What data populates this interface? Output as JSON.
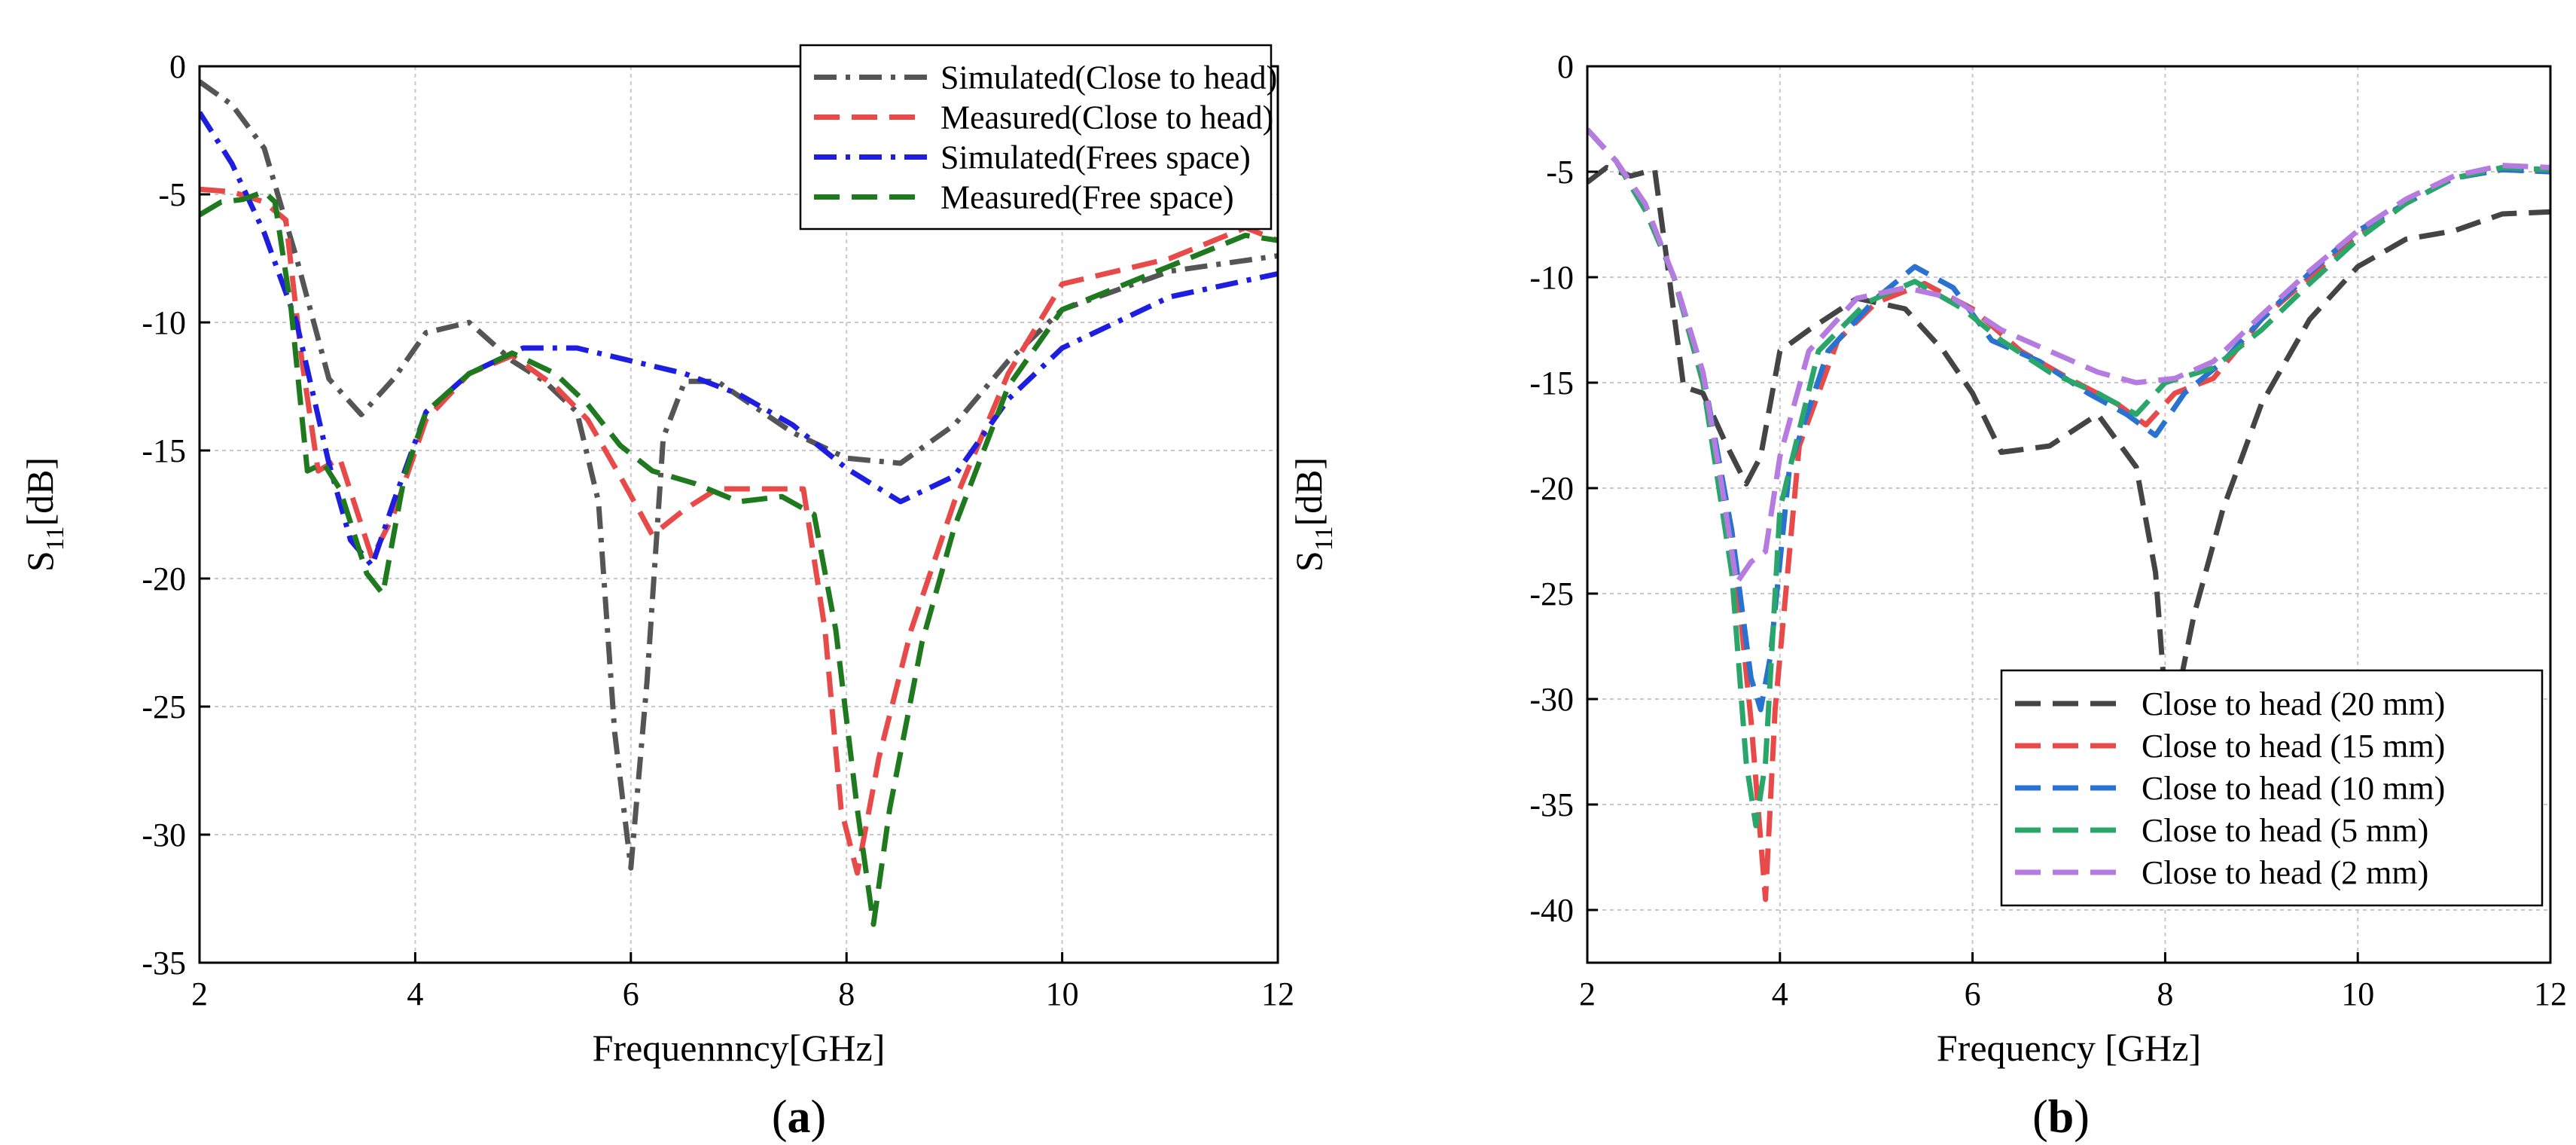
{
  "chart_data": [
    {
      "type": "line",
      "panel_label": "a",
      "xlabel": "Frequennncy[GHz]",
      "ylabel": {
        "main": "S",
        "sub": "11",
        "unit": "[dB]"
      },
      "xlim": [
        2,
        12
      ],
      "ylim": [
        -35,
        0
      ],
      "xticks": [
        2,
        4,
        6,
        8,
        10,
        12
      ],
      "yticks": [
        0,
        -5,
        -10,
        -15,
        -20,
        -25,
        -30,
        -35
      ],
      "grid": true,
      "legend_position": "top-center",
      "series": [
        {
          "name": "Simulated(Close to head)",
          "color": "#555555",
          "dash": "dashdot",
          "x": [
            2,
            2.3,
            2.6,
            2.9,
            3.2,
            3.5,
            3.8,
            4.1,
            4.5,
            4.9,
            5.2,
            5.5,
            5.7,
            5.85,
            6.0,
            6.15,
            6.3,
            6.5,
            6.8,
            7.5,
            8.0,
            8.5,
            9.0,
            9.5,
            10.0,
            11.0,
            12.0
          ],
          "y": [
            -0.6,
            -1.5,
            -3.2,
            -7.5,
            -12.2,
            -13.6,
            -12.2,
            -10.4,
            -10.0,
            -11.5,
            -12.3,
            -13.5,
            -17.0,
            -26.0,
            -31.3,
            -24.0,
            -14.5,
            -12.3,
            -12.3,
            -14.3,
            -15.3,
            -15.5,
            -14.0,
            -11.5,
            -9.5,
            -8.0,
            -7.4
          ]
        },
        {
          "name": "Measured(Close to head)",
          "color": "#e84a4a",
          "dash": "dashed",
          "x": [
            2,
            2.3,
            2.6,
            2.8,
            2.95,
            3.1,
            3.3,
            3.6,
            3.8,
            4.1,
            4.5,
            4.9,
            5.3,
            5.6,
            5.9,
            6.2,
            6.5,
            6.8,
            7.2,
            7.6,
            7.8,
            7.95,
            8.1,
            8.3,
            8.6,
            9.0,
            9.5,
            10.0,
            11.0,
            11.7,
            12.0
          ],
          "y": [
            -4.8,
            -4.9,
            -5.3,
            -6.0,
            -11.5,
            -15.8,
            -15.3,
            -19.2,
            -17.5,
            -13.8,
            -12.0,
            -11.3,
            -12.5,
            -13.8,
            -16.0,
            -18.3,
            -17.3,
            -16.5,
            -16.5,
            -16.5,
            -22.0,
            -29.0,
            -31.5,
            -27.0,
            -22.0,
            -17.0,
            -12.0,
            -8.5,
            -7.5,
            -6.3,
            -6.8
          ]
        },
        {
          "name": "Simulated(Frees space)",
          "color": "#1e1ee0",
          "dash": "dashdot",
          "x": [
            2,
            2.3,
            2.6,
            2.9,
            3.2,
            3.4,
            3.6,
            3.8,
            4.1,
            4.5,
            5.0,
            5.5,
            6.0,
            6.5,
            7.0,
            7.5,
            8.0,
            8.5,
            9.0,
            9.5,
            10.0,
            11.0,
            12.0
          ],
          "y": [
            -1.8,
            -3.8,
            -6.5,
            -10.0,
            -15.5,
            -18.5,
            -19.5,
            -17.0,
            -13.5,
            -12.0,
            -11.0,
            -11.0,
            -11.5,
            -12.0,
            -12.8,
            -14.0,
            -15.7,
            -17.0,
            -16.0,
            -13.0,
            -11.0,
            -9.0,
            -8.1
          ]
        },
        {
          "name": "Measured(Free space)",
          "color": "#1f7a1f",
          "dash": "dashed",
          "x": [
            2,
            2.2,
            2.4,
            2.6,
            2.7,
            2.85,
            3.0,
            3.15,
            3.3,
            3.55,
            3.7,
            3.9,
            4.1,
            4.5,
            4.9,
            5.3,
            5.6,
            5.9,
            6.2,
            6.6,
            7.0,
            7.4,
            7.7,
            7.9,
            8.1,
            8.25,
            8.4,
            8.7,
            9.0,
            9.5,
            10.0,
            11.0,
            11.7,
            12.0
          ],
          "y": [
            -5.8,
            -5.3,
            -5.2,
            -4.9,
            -5.3,
            -9.5,
            -15.8,
            -15.5,
            -16.5,
            -19.8,
            -20.6,
            -16.0,
            -13.5,
            -12.0,
            -11.2,
            -12.0,
            -13.2,
            -14.8,
            -15.8,
            -16.3,
            -17.0,
            -16.8,
            -17.5,
            -22.0,
            -29.0,
            -33.5,
            -29.0,
            -22.5,
            -18.0,
            -12.5,
            -9.5,
            -7.8,
            -6.6,
            -6.8
          ]
        }
      ]
    },
    {
      "type": "line",
      "panel_label": "b",
      "xlabel": "Frequency [GHz]",
      "ylabel": {
        "main": "S",
        "sub": "11",
        "unit": "[dB]"
      },
      "xlim": [
        2,
        12
      ],
      "ylim": [
        -42.5,
        0
      ],
      "xticks": [
        2,
        4,
        6,
        8,
        10,
        12
      ],
      "yticks": [
        0,
        -5,
        -10,
        -15,
        -20,
        -25,
        -30,
        -35,
        -40
      ],
      "grid": true,
      "legend_position": "bottom-right",
      "series": [
        {
          "name": "Close to head (20 mm)",
          "color": "#444444",
          "dash": "dashed",
          "x": [
            2,
            2.2,
            2.45,
            2.7,
            2.85,
            3.0,
            3.2,
            3.45,
            3.65,
            3.8,
            4.0,
            4.3,
            4.8,
            5.3,
            5.7,
            6.0,
            6.3,
            6.8,
            7.3,
            7.7,
            7.9,
            8.0,
            8.1,
            8.3,
            8.6,
            9.0,
            9.5,
            10.0,
            10.5,
            11.0,
            11.5,
            12.0
          ],
          "y": [
            -5.5,
            -4.8,
            -5.2,
            -4.9,
            -10.0,
            -15.2,
            -15.5,
            -18.0,
            -19.8,
            -18.5,
            -13.5,
            -12.5,
            -11.0,
            -11.5,
            -13.5,
            -15.5,
            -18.3,
            -18.0,
            -16.5,
            -19.0,
            -24.0,
            -30.0,
            -30.5,
            -26.0,
            -21.0,
            -16.0,
            -12.0,
            -9.5,
            -8.2,
            -7.8,
            -7.0,
            -6.9
          ]
        },
        {
          "name": "Close to head (15 mm)",
          "color": "#e84a4a",
          "dash": "dashed",
          "x": [
            2,
            2.3,
            2.6,
            2.9,
            3.2,
            3.5,
            3.7,
            3.85,
            3.95,
            4.2,
            4.6,
            5.0,
            5.5,
            6.0,
            6.5,
            7.0,
            7.5,
            7.8,
            8.1,
            8.5,
            9.0,
            9.5,
            10.0,
            10.5,
            11.0,
            11.5,
            12.0
          ],
          "y": [
            -3.0,
            -4.5,
            -6.8,
            -10.0,
            -15.0,
            -22.0,
            -31.0,
            -39.5,
            -30.5,
            -18.0,
            -13.0,
            -11.2,
            -10.3,
            -11.5,
            -13.5,
            -14.8,
            -16.0,
            -17.0,
            -15.5,
            -14.8,
            -12.0,
            -10.0,
            -8.0,
            -6.5,
            -5.3,
            -4.9,
            -5.0
          ]
        },
        {
          "name": "Close to head (10 mm)",
          "color": "#2a72d0",
          "dash": "dashed",
          "x": [
            2,
            2.3,
            2.6,
            2.9,
            3.2,
            3.5,
            3.7,
            3.8,
            3.9,
            4.1,
            4.5,
            5.0,
            5.4,
            5.8,
            6.2,
            6.7,
            7.2,
            7.6,
            7.9,
            8.2,
            8.6,
            9.0,
            9.5,
            10.0,
            10.5,
            11.0,
            11.5,
            12.0
          ],
          "y": [
            -3.0,
            -4.5,
            -6.8,
            -10.0,
            -14.5,
            -22.0,
            -29.0,
            -30.5,
            -28.0,
            -19.0,
            -13.5,
            -11.0,
            -9.5,
            -10.5,
            -13.0,
            -14.0,
            -15.5,
            -16.5,
            -17.5,
            -15.5,
            -14.0,
            -12.0,
            -9.8,
            -7.8,
            -6.5,
            -5.3,
            -4.9,
            -5.0
          ]
        },
        {
          "name": "Close to head (5 mm)",
          "color": "#2aa66a",
          "dash": "dashed",
          "x": [
            2,
            2.3,
            2.6,
            2.9,
            3.2,
            3.5,
            3.65,
            3.75,
            3.85,
            4.0,
            4.4,
            4.9,
            5.4,
            5.9,
            6.3,
            6.8,
            7.3,
            7.7,
            8.0,
            8.5,
            9.0,
            9.5,
            10.0,
            10.5,
            11.0,
            11.5,
            12.0
          ],
          "y": [
            -3.0,
            -4.5,
            -6.8,
            -10.0,
            -15.0,
            -24.0,
            -33.0,
            -36.0,
            -33.0,
            -21.0,
            -13.5,
            -11.2,
            -10.2,
            -11.5,
            -13.0,
            -14.5,
            -15.5,
            -16.5,
            -15.0,
            -14.3,
            -12.5,
            -10.3,
            -8.2,
            -6.5,
            -5.3,
            -4.8,
            -4.9
          ]
        },
        {
          "name": "Close to head (2 mm)",
          "color": "#b57be0",
          "dash": "dashed",
          "x": [
            2,
            2.3,
            2.6,
            2.9,
            3.2,
            3.4,
            3.55,
            3.7,
            3.85,
            4.0,
            4.3,
            4.8,
            5.3,
            5.8,
            6.3,
            6.8,
            7.3,
            7.7,
            8.1,
            8.5,
            9.0,
            9.5,
            10.0,
            10.5,
            11.0,
            11.5,
            12.0
          ],
          "y": [
            -3.0,
            -4.5,
            -6.5,
            -10.0,
            -14.5,
            -20.0,
            -24.5,
            -23.5,
            -23.0,
            -18.5,
            -13.5,
            -11.0,
            -10.5,
            -11.0,
            -12.5,
            -13.5,
            -14.5,
            -15.0,
            -14.8,
            -14.0,
            -11.8,
            -9.7,
            -7.8,
            -6.3,
            -5.2,
            -4.7,
            -4.8
          ]
        }
      ]
    }
  ]
}
